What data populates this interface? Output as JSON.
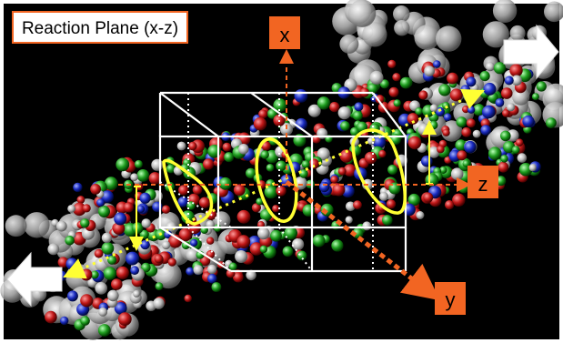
{
  "title": "Reaction Plane (x-z)",
  "axes": {
    "x": "x",
    "y": "y",
    "z": "z"
  },
  "colors": {
    "background": "#000000",
    "frame": "#ffffff",
    "axis_label_bg": "#f26522",
    "axis_dashed": "#f26522",
    "ellipse": "#ffff33",
    "beam_dotted": "#ffff33",
    "arrow_fill": "#ffffff",
    "title_border": "#f26522",
    "particles": [
      "#c01818",
      "#1f9d1f",
      "#1a2bc0",
      "#e8e8e8"
    ]
  },
  "icons": {
    "left_arrow": "left-arrow-icon",
    "right_arrow": "right-arrow-icon"
  }
}
